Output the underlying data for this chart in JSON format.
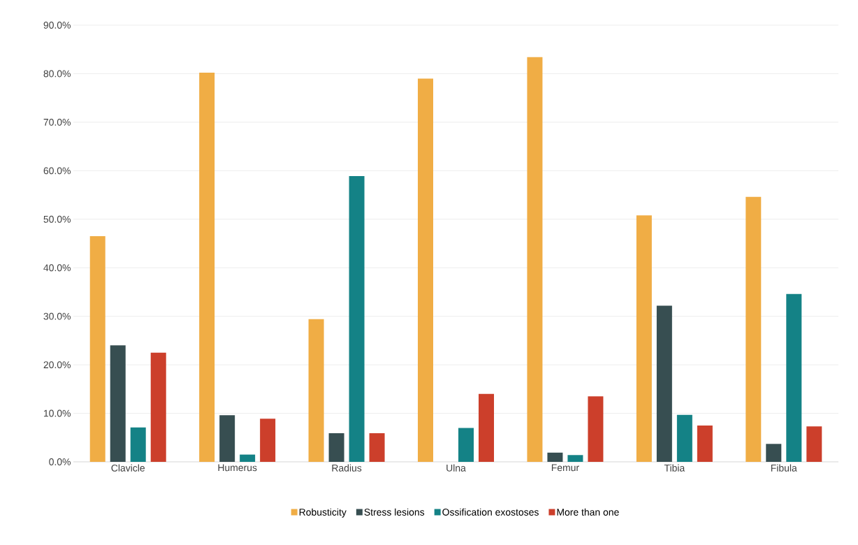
{
  "chart_data": {
    "type": "bar",
    "categories": [
      "Clavicle",
      "Humerus",
      "Radius",
      "Ulna",
      "Femur",
      "Tibia",
      "Fibula"
    ],
    "series": [
      {
        "name": "Robusticity",
        "color": "#f0ad45",
        "values": [
          46.5,
          80.2,
          29.4,
          79.0,
          83.4,
          50.8,
          54.6
        ]
      },
      {
        "name": "Stress lesions",
        "color": "#374e51",
        "values": [
          24.0,
          9.6,
          5.9,
          0,
          1.9,
          32.2,
          3.7
        ]
      },
      {
        "name": "Ossification exostoses",
        "color": "#148286",
        "values": [
          7.1,
          1.5,
          58.9,
          7.0,
          1.4,
          9.7,
          34.6
        ]
      },
      {
        "name": "More than one",
        "color": "#cc3f2b",
        "values": [
          22.5,
          8.9,
          5.9,
          14.0,
          13.5,
          7.5,
          7.3
        ]
      }
    ],
    "ylim": [
      0,
      90
    ],
    "yticks": [
      {
        "value": 0,
        "label": "0.0%"
      },
      {
        "value": 10,
        "label": "10.0%"
      },
      {
        "value": 20,
        "label": "20.0%"
      },
      {
        "value": 30,
        "label": "30.0%"
      },
      {
        "value": 40,
        "label": "40.0%"
      },
      {
        "value": 50,
        "label": "50.0%"
      },
      {
        "value": 60,
        "label": "60.0%"
      },
      {
        "value": 70,
        "label": "70.0%"
      },
      {
        "value": 80,
        "label": "80.0%"
      },
      {
        "value": 90,
        "label": "90.0%"
      }
    ],
    "grid": "y",
    "legend": "bottom"
  }
}
